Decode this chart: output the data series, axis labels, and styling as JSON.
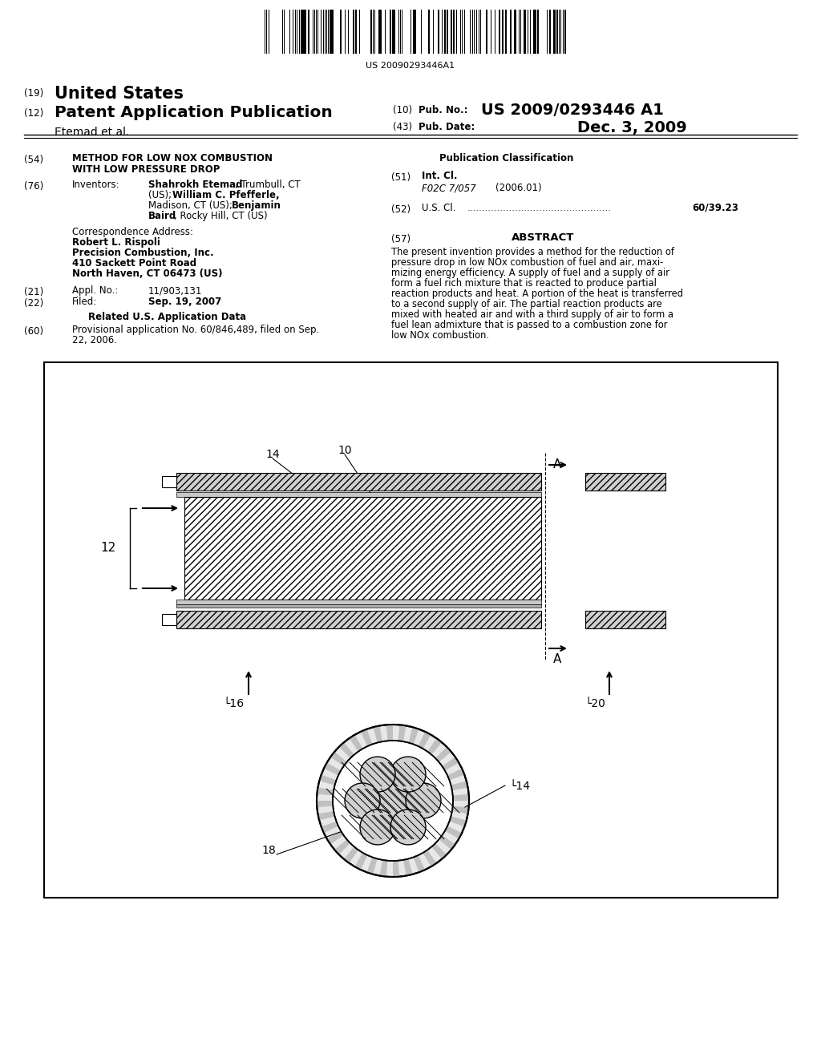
{
  "barcode_text": "US 20090293446A1",
  "bg_color": "#ffffff",
  "text_color": "#000000"
}
